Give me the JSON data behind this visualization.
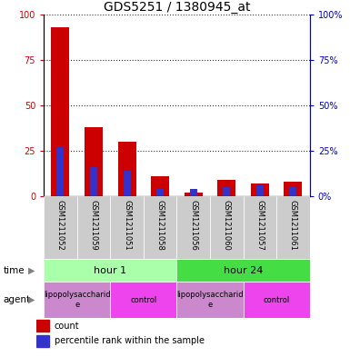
{
  "title": "GDS5251 / 1380945_at",
  "samples": [
    "GSM1211052",
    "GSM1211059",
    "GSM1211051",
    "GSM1211058",
    "GSM1211056",
    "GSM1211060",
    "GSM1211057",
    "GSM1211061"
  ],
  "count_values": [
    93,
    38,
    30,
    11,
    2,
    9,
    7,
    8
  ],
  "percentile_values": [
    27,
    16,
    14,
    4,
    4,
    5,
    6,
    5
  ],
  "bar_color": "#cc0000",
  "percentile_color": "#3333cc",
  "ylim": [
    0,
    100
  ],
  "yticks": [
    0,
    25,
    50,
    75,
    100
  ],
  "time_groups": [
    {
      "label": "hour 1",
      "start": 0,
      "end": 4,
      "color": "#aaffaa"
    },
    {
      "label": "hour 24",
      "start": 4,
      "end": 8,
      "color": "#44dd44"
    }
  ],
  "agent_groups": [
    {
      "label": "lipopolysaccharid\ne",
      "start": 0,
      "end": 2,
      "color": "#cc88cc"
    },
    {
      "label": "control",
      "start": 2,
      "end": 4,
      "color": "#ee44ee"
    },
    {
      "label": "lipopolysaccharid\ne",
      "start": 4,
      "end": 6,
      "color": "#cc88cc"
    },
    {
      "label": "control",
      "start": 6,
      "end": 8,
      "color": "#ee44ee"
    }
  ],
  "bg_color": "#cccccc",
  "chart_bg": "#ffffff",
  "left_axis_color": "#cc0000",
  "right_axis_color": "#0000cc",
  "title_fontsize": 10,
  "tick_fontsize": 7,
  "label_fontsize": 8,
  "sample_fontsize": 6,
  "legend_fontsize": 7
}
